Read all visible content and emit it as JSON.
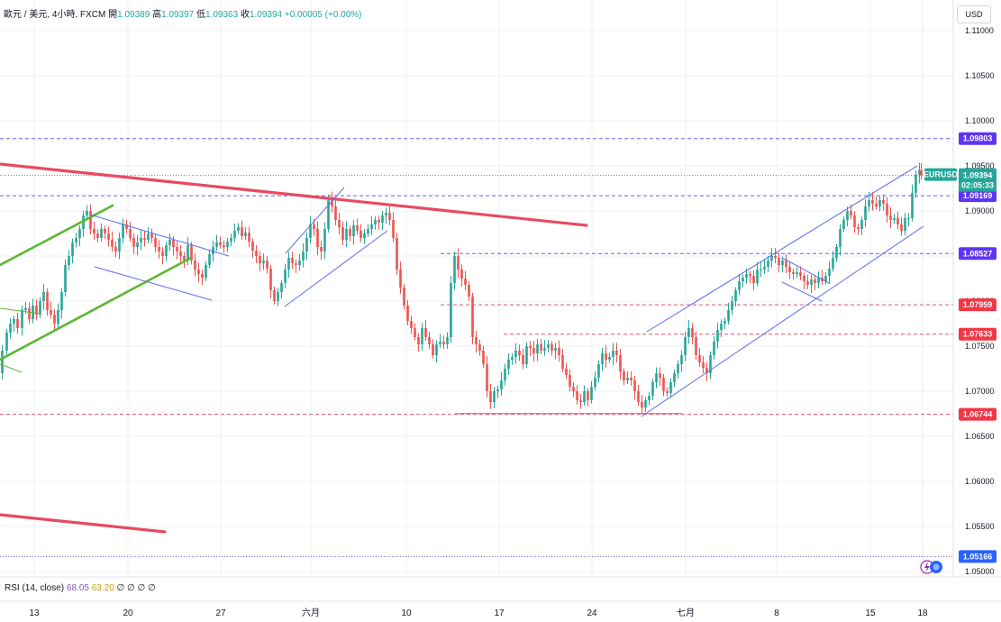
{
  "header": {
    "symbol": "歐元 / 美元, 4小時, FXCM",
    "open_label": "開",
    "open": "1.09389",
    "high_label": "高",
    "high": "1.09397",
    "low_label": "低",
    "low": "1.09363",
    "close_label": "收",
    "close": "1.09394",
    "change": "+0.00005 (+0.00%)"
  },
  "currency_button": "USD",
  "rsi_legend": {
    "label": "RSI (14, close)",
    "value1": "68.05",
    "value2": "63.20",
    "extras": "∅ ∅ ∅ ∅"
  },
  "colors": {
    "up": "#26a69a",
    "down": "#ef5350",
    "red_line": "#e84a5f",
    "green_line": "#5bb832",
    "channel": "#5b6cf0",
    "blue_level": "#6a5bf0",
    "red_level": "#e0536b",
    "grid": "#eef0f3"
  },
  "chart_data": {
    "type": "candlestick",
    "y_axis": {
      "ticks": [
        "1.11000",
        "1.10500",
        "1.10000",
        "1.09500",
        "1.09000",
        "1.08500",
        "1.08000",
        "1.07500",
        "1.07000",
        "1.06500",
        "1.06000",
        "1.05500",
        "1.05000"
      ],
      "ylim": [
        1.0494,
        1.1125
      ]
    },
    "x_axis": {
      "ticks": [
        "13",
        "20",
        "27",
        "六月",
        "10",
        "17",
        "24",
        "七月",
        "8",
        "15",
        "18"
      ]
    },
    "symbol_tag": {
      "label": "EURUSD",
      "price": "1.09394",
      "countdown": "02:05:33"
    },
    "price_levels": [
      {
        "price": "1.09803",
        "value": 1.09803,
        "style": "blue"
      },
      {
        "price": "1.09169",
        "value": 1.09169,
        "style": "blue"
      },
      {
        "price": "1.08527",
        "value": 1.08527,
        "style": "blue"
      },
      {
        "price": "1.07959",
        "value": 1.07959,
        "style": "red"
      },
      {
        "price": "1.07633",
        "value": 1.07633,
        "style": "red"
      },
      {
        "price": "1.06744",
        "value": 1.06744,
        "style": "red"
      },
      {
        "price": "1.05166",
        "value": 1.05166,
        "style": "blue"
      }
    ],
    "price_path": [
      [
        0,
        1.072
      ],
      [
        4,
        1.0745
      ],
      [
        9,
        1.0765
      ],
      [
        13,
        1.0775
      ],
      [
        17,
        1.078
      ],
      [
        21,
        1.077
      ],
      [
        26,
        1.079
      ],
      [
        30,
        1.0792
      ],
      [
        34,
        1.078
      ],
      [
        38,
        1.0795
      ],
      [
        42,
        1.0785
      ],
      [
        46,
        1.08
      ],
      [
        50,
        1.081
      ],
      [
        54,
        1.079
      ],
      [
        58,
        1.0785
      ],
      [
        62,
        1.0775
      ],
      [
        66,
        1.079
      ],
      [
        70,
        1.081
      ],
      [
        74,
        1.084
      ],
      [
        78,
        1.085
      ],
      [
        82,
        1.0865
      ],
      [
        86,
        1.087
      ],
      [
        90,
        1.088
      ],
      [
        94,
        1.0895
      ],
      [
        98,
        1.09
      ],
      [
        102,
        1.088
      ],
      [
        106,
        1.0875
      ],
      [
        110,
        1.087
      ],
      [
        114,
        1.088
      ],
      [
        118,
        1.0875
      ],
      [
        122,
        1.0868
      ],
      [
        126,
        1.086
      ],
      [
        130,
        1.0855
      ],
      [
        134,
        1.087
      ],
      [
        138,
        1.0885
      ],
      [
        142,
        1.088
      ],
      [
        146,
        1.087
      ],
      [
        150,
        1.086
      ],
      [
        154,
        1.0865
      ],
      [
        158,
        1.087
      ],
      [
        162,
        1.0868
      ],
      [
        166,
        1.0875
      ],
      [
        170,
        1.087
      ],
      [
        174,
        1.086
      ],
      [
        178,
        1.0855
      ],
      [
        182,
        1.085
      ],
      [
        186,
        1.0862
      ],
      [
        190,
        1.0868
      ],
      [
        194,
        1.086
      ],
      [
        198,
        1.0855
      ],
      [
        202,
        1.085
      ],
      [
        206,
        1.0845
      ],
      [
        210,
        1.0862
      ],
      [
        214,
        1.0845
      ],
      [
        218,
        1.0835
      ],
      [
        222,
        1.083
      ],
      [
        226,
        1.0826
      ],
      [
        230,
        1.084
      ],
      [
        234,
        1.0852
      ],
      [
        238,
        1.086
      ],
      [
        242,
        1.0865
      ],
      [
        246,
        1.0862
      ],
      [
        250,
        1.086
      ],
      [
        254,
        1.0866
      ],
      [
        258,
        1.087
      ],
      [
        262,
        1.0878
      ],
      [
        266,
        1.0882
      ],
      [
        270,
        1.0872
      ],
      [
        274,
        1.0876
      ],
      [
        278,
        1.0866
      ],
      [
        282,
        1.0856
      ],
      [
        286,
        1.085
      ],
      [
        290,
        1.0842
      ],
      [
        294,
        1.0845
      ],
      [
        298,
        1.0836
      ],
      [
        302,
        1.0812
      ],
      [
        306,
        1.08
      ],
      [
        310,
        1.081
      ],
      [
        314,
        1.082
      ],
      [
        318,
        1.0835
      ],
      [
        322,
        1.0848
      ],
      [
        326,
        1.0842
      ],
      [
        330,
        1.084
      ],
      [
        334,
        1.0845
      ],
      [
        338,
        1.0855
      ],
      [
        342,
        1.087
      ],
      [
        346,
        1.0885
      ],
      [
        350,
        1.088
      ],
      [
        354,
        1.086
      ],
      [
        358,
        1.0855
      ],
      [
        362,
        1.088
      ],
      [
        366,
        1.0912
      ],
      [
        370,
        1.0905
      ],
      [
        374,
        1.089
      ],
      [
        378,
        1.0882
      ],
      [
        382,
        1.0868
      ],
      [
        386,
        1.088
      ],
      [
        390,
        1.0872
      ],
      [
        394,
        1.0884
      ],
      [
        398,
        1.0878
      ],
      [
        402,
        1.087
      ],
      [
        406,
        1.0875
      ],
      [
        410,
        1.088
      ],
      [
        414,
        1.0885
      ],
      [
        418,
        1.089
      ],
      [
        422,
        1.0887
      ],
      [
        426,
        1.0895
      ],
      [
        430,
        1.0898
      ],
      [
        434,
        1.089
      ],
      [
        438,
        1.087
      ],
      [
        442,
        1.0835
      ],
      [
        446,
        1.0815
      ],
      [
        450,
        1.0795
      ],
      [
        454,
        1.0778
      ],
      [
        458,
        1.077
      ],
      [
        462,
        1.076
      ],
      [
        466,
        1.0752
      ],
      [
        470,
        1.077
      ],
      [
        474,
        1.076
      ],
      [
        478,
        1.0752
      ],
      [
        482,
        1.074
      ],
      [
        486,
        1.0752
      ],
      [
        490,
        1.0755
      ],
      [
        494,
        1.0752
      ],
      [
        498,
        1.076
      ],
      [
        502,
        1.082
      ],
      [
        506,
        1.085
      ],
      [
        510,
        1.0835
      ],
      [
        514,
        1.0825
      ],
      [
        518,
        1.0818
      ],
      [
        522,
        1.0805
      ],
      [
        526,
        1.076
      ],
      [
        530,
        1.0752
      ],
      [
        534,
        1.0745
      ],
      [
        538,
        1.073
      ],
      [
        542,
        1.07
      ],
      [
        546,
        1.0688
      ],
      [
        550,
        1.07
      ],
      [
        554,
        1.0702
      ],
      [
        558,
        1.0712
      ],
      [
        562,
        1.0725
      ],
      [
        566,
        1.0735
      ],
      [
        570,
        1.0738
      ],
      [
        574,
        1.0745
      ],
      [
        578,
        1.074
      ],
      [
        582,
        1.073
      ],
      [
        586,
        1.075
      ],
      [
        590,
        1.0748
      ],
      [
        594,
        1.0742
      ],
      [
        598,
        1.0752
      ],
      [
        602,
        1.0745
      ],
      [
        606,
        1.0748
      ],
      [
        610,
        1.0752
      ],
      [
        614,
        1.0745
      ],
      [
        618,
        1.0748
      ],
      [
        622,
        1.074
      ],
      [
        626,
        1.0725
      ],
      [
        630,
        1.0718
      ],
      [
        634,
        1.0705
      ],
      [
        638,
        1.07
      ],
      [
        642,
        1.069
      ],
      [
        646,
        1.0688
      ],
      [
        650,
        1.07
      ],
      [
        654,
        1.069
      ],
      [
        658,
        1.0705
      ],
      [
        662,
        1.0715
      ],
      [
        666,
        1.073
      ],
      [
        670,
        1.0742
      ],
      [
        674,
        1.0735
      ],
      [
        678,
        1.0738
      ],
      [
        682,
        1.0745
      ],
      [
        686,
        1.074
      ],
      [
        690,
        1.0722
      ],
      [
        694,
        1.0712
      ],
      [
        698,
        1.0715
      ],
      [
        702,
        1.0712
      ],
      [
        706,
        1.07
      ],
      [
        710,
        1.0688
      ],
      [
        714,
        1.0682
      ],
      [
        718,
        1.069
      ],
      [
        722,
        1.0695
      ],
      [
        726,
        1.071
      ],
      [
        730,
        1.072
      ],
      [
        734,
        1.0715
      ],
      [
        738,
        1.07
      ],
      [
        742,
        1.0698
      ],
      [
        746,
        1.071
      ],
      [
        750,
        1.072
      ],
      [
        754,
        1.073
      ],
      [
        758,
        1.074
      ],
      [
        762,
        1.076
      ],
      [
        766,
        1.077
      ],
      [
        770,
        1.076
      ],
      [
        774,
        1.074
      ],
      [
        778,
        1.0732
      ],
      [
        782,
        1.0726
      ],
      [
        786,
        1.072
      ],
      [
        790,
        1.074
      ],
      [
        794,
        1.0755
      ],
      [
        798,
        1.0768
      ],
      [
        802,
        1.0775
      ],
      [
        806,
        1.0778
      ],
      [
        810,
        1.079
      ],
      [
        814,
        1.08
      ],
      [
        818,
        1.0812
      ],
      [
        822,
        1.0822
      ],
      [
        826,
        1.0826
      ],
      [
        830,
        1.083
      ],
      [
        834,
        1.0828
      ],
      [
        838,
        1.082
      ],
      [
        842,
        1.0835
      ],
      [
        846,
        1.0835
      ],
      [
        850,
        1.0838
      ],
      [
        854,
        1.0845
      ],
      [
        858,
        1.085
      ],
      [
        862,
        1.0848
      ],
      [
        866,
        1.084
      ],
      [
        870,
        1.0845
      ],
      [
        874,
        1.0838
      ],
      [
        878,
        1.0832
      ],
      [
        882,
        1.083
      ],
      [
        886,
        1.0832
      ],
      [
        890,
        1.0828
      ],
      [
        894,
        1.0822
      ],
      [
        898,
        1.0818
      ],
      [
        902,
        1.0824
      ],
      [
        906,
        1.082
      ],
      [
        910,
        1.0826
      ],
      [
        914,
        1.0822
      ],
      [
        918,
        1.0828
      ],
      [
        922,
        1.0836
      ],
      [
        926,
        1.0848
      ],
      [
        930,
        1.086
      ],
      [
        934,
        1.088
      ],
      [
        938,
        1.089
      ],
      [
        942,
        1.09
      ],
      [
        946,
        1.0895
      ],
      [
        950,
        1.0882
      ],
      [
        954,
        1.088
      ],
      [
        958,
        1.089
      ],
      [
        962,
        1.0905
      ],
      [
        966,
        1.0912
      ],
      [
        970,
        1.0908
      ],
      [
        974,
        1.0905
      ],
      [
        978,
        1.0912
      ],
      [
        982,
        1.0908
      ],
      [
        986,
        1.0895
      ],
      [
        990,
        1.089
      ],
      [
        994,
        1.0892
      ],
      [
        998,
        1.0885
      ],
      [
        1002,
        1.0878
      ],
      [
        1006,
        1.0892
      ],
      [
        1010,
        1.0892
      ],
      [
        1014,
        1.092
      ],
      [
        1018,
        1.094
      ],
      [
        1022,
        1.0945
      ],
      [
        1024,
        1.09394
      ]
    ],
    "annotations": {
      "red_trendlines": [
        {
          "x1": 0,
          "y1": 1.0952,
          "x2": 651,
          "y2": 1.0884
        },
        {
          "x1": 0,
          "y1": 1.0563,
          "x2": 183,
          "y2": 1.0544
        }
      ],
      "green_lines": [
        {
          "x1": 0,
          "y1": 1.084,
          "x2": 125,
          "y2": 1.0906
        },
        {
          "x1": 0,
          "y1": 1.0735,
          "x2": 212,
          "y2": 1.0848
        },
        {
          "x1": 0,
          "y1": 1.0792,
          "x2": 45,
          "y2": 1.0786
        },
        {
          "x1": 0,
          "y1": 1.073,
          "x2": 24,
          "y2": 1.0721
        }
      ],
      "channels": [
        {
          "x1": 100,
          "y1": 1.0896,
          "x2": 254,
          "y2": 1.085
        },
        {
          "x1": 105,
          "y1": 1.0838,
          "x2": 235,
          "y2": 1.0801
        },
        {
          "x1": 317,
          "y1": 1.0853,
          "x2": 382,
          "y2": 1.0926
        },
        {
          "x1": 316,
          "y1": 1.0794,
          "x2": 430,
          "y2": 1.0878
        },
        {
          "x1": 718,
          "y1": 1.0766,
          "x2": 1018,
          "y2": 1.095
        },
        {
          "x1": 712,
          "y1": 1.0672,
          "x2": 1025,
          "y2": 1.0883
        },
        {
          "x1": 868,
          "y1": 1.0848,
          "x2": 920,
          "y2": 1.082
        },
        {
          "x1": 868,
          "y1": 1.0821,
          "x2": 912,
          "y2": 1.08
        }
      ],
      "red_short_levels": [
        {
          "x1": 505,
          "y": 1.06752,
          "x2": 757
        }
      ]
    }
  }
}
